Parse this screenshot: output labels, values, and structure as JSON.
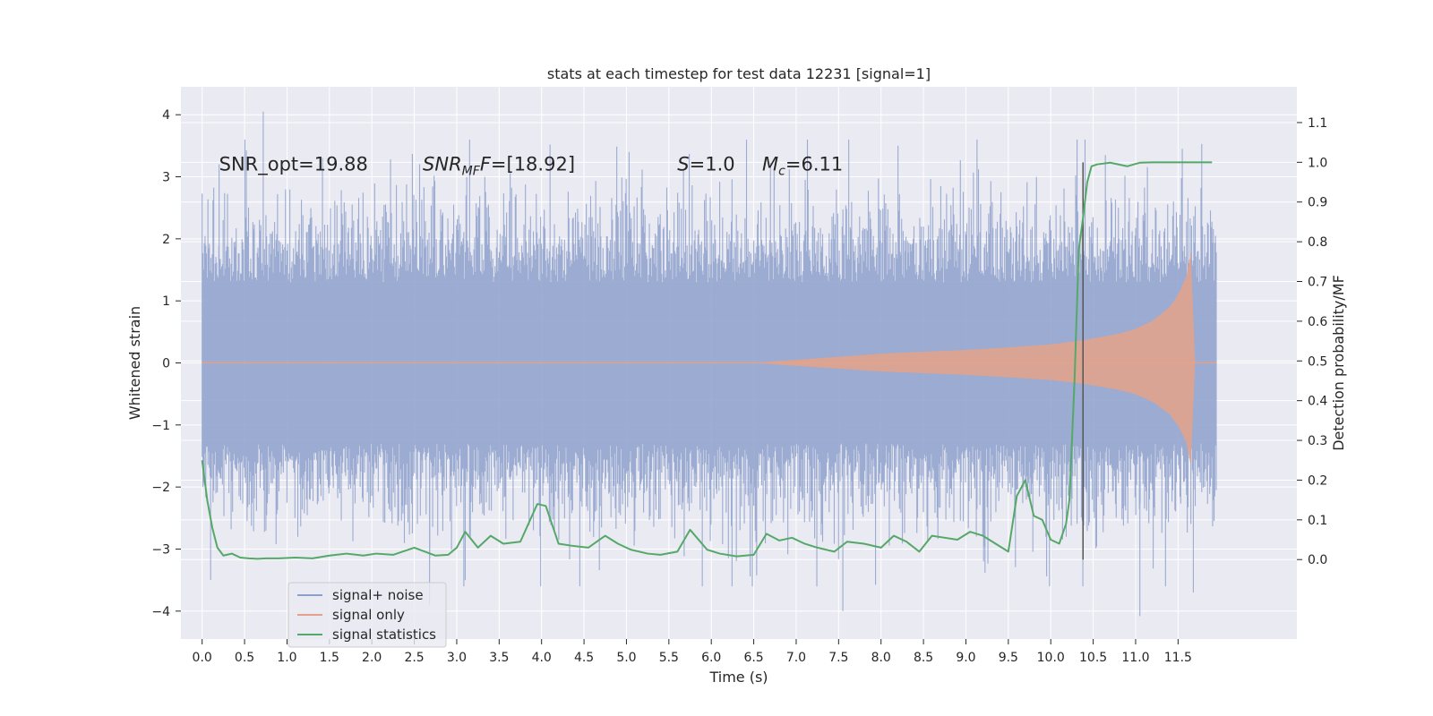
{
  "chart_data": {
    "type": "line",
    "title": "stats at each timestep for test data 12231 [signal=1]",
    "xlabel": "Time (s)",
    "ylabel": "Whitened strain",
    "y2label": "Detection probability/MF",
    "xlim": [
      -0.25,
      12.9
    ],
    "ylim": [
      -4.45,
      4.45
    ],
    "y2lim": [
      -0.2,
      1.19
    ],
    "x_ticks": [
      0.0,
      0.5,
      1.0,
      1.5,
      2.0,
      2.5,
      3.0,
      3.5,
      4.0,
      4.5,
      5.0,
      5.5,
      6.0,
      6.5,
      7.0,
      7.5,
      8.0,
      8.5,
      9.0,
      9.5,
      10.0,
      10.5,
      11.0,
      11.5
    ],
    "x_tick_labels": [
      "0.0",
      "0.5",
      "1.0",
      "1.5",
      "2.0",
      "2.5",
      "3.0",
      "3.5",
      "4.0",
      "4.5",
      "5.0",
      "5.5",
      "6.0",
      "6.5",
      "7.0",
      "7.5",
      "8.0",
      "8.5",
      "9.0",
      "9.5",
      "10.0",
      "10.5",
      "11.0",
      "11.5"
    ],
    "y_ticks": [
      -4,
      -3,
      -2,
      -1,
      0,
      1,
      2,
      3,
      4
    ],
    "y_tick_labels": [
      "−4",
      "−3",
      "−2",
      "−1",
      "0",
      "1",
      "2",
      "3",
      "4"
    ],
    "y2_ticks": [
      0.0,
      0.1,
      0.2,
      0.3,
      0.4,
      0.5,
      0.6,
      0.7,
      0.8,
      0.9,
      1.0,
      1.1
    ],
    "y2_tick_labels": [
      "0.0",
      "0.1",
      "0.2",
      "0.3",
      "0.4",
      "0.5",
      "0.6",
      "0.7",
      "0.8",
      "0.9",
      "1.0",
      "1.1"
    ],
    "grid": true,
    "legend_position": "lower-left",
    "annotations": [
      {
        "text": "SNR_opt=19.88",
        "x": 0.2,
        "y": 3.2
      },
      {
        "text": "SNR_MF=[18.92]",
        "x": 2.6,
        "y": 3.2
      },
      {
        "text": "S=1.0",
        "x": 5.6,
        "y": 3.2
      },
      {
        "text": "M_c=6.11",
        "x": 6.6,
        "y": 3.2
      }
    ],
    "detection_marker_x": 10.38,
    "series": [
      {
        "name": "signal+ noise",
        "color": "#8da0cb",
        "kind": "noise-band",
        "t_range": [
          0.0,
          11.95
        ],
        "typical_amplitude": 1.3,
        "peak_samples": [
          {
            "x": 0.1,
            "y": -3.5
          },
          {
            "x": 0.2,
            "y": 3.2
          },
          {
            "x": 0.72,
            "y": 4.05
          },
          {
            "x": 2.22,
            "y": 3.28
          },
          {
            "x": 2.68,
            "y": -3.9
          },
          {
            "x": 3.1,
            "y": -3.5
          },
          {
            "x": 4.1,
            "y": 3.52
          },
          {
            "x": 7.55,
            "y": -4.0
          },
          {
            "x": 8.2,
            "y": 3.5
          },
          {
            "x": 11.05,
            "y": -4.08
          },
          {
            "x": 11.68,
            "y": -3.7
          },
          {
            "x": 11.55,
            "y": 3.45
          }
        ]
      },
      {
        "name": "signal only",
        "color": "#e5a28a",
        "kind": "chirp",
        "t": [
          0.0,
          6.5,
          7.0,
          7.5,
          8.0,
          8.5,
          9.0,
          9.5,
          10.0,
          10.4,
          10.8,
          11.0,
          11.2,
          11.4,
          11.5,
          11.6,
          11.65,
          11.7
        ],
        "envelope": [
          0.0,
          0.0,
          0.05,
          0.1,
          0.15,
          0.18,
          0.21,
          0.25,
          0.3,
          0.37,
          0.47,
          0.55,
          0.68,
          0.9,
          1.1,
          1.4,
          1.8,
          0.0
        ]
      },
      {
        "name": "signal statistics",
        "color": "#55a868",
        "kind": "line",
        "x": [
          0.0,
          0.06,
          0.12,
          0.18,
          0.25,
          0.35,
          0.45,
          0.55,
          0.65,
          0.75,
          0.9,
          1.1,
          1.3,
          1.5,
          1.7,
          1.9,
          2.05,
          2.25,
          2.5,
          2.75,
          2.9,
          3.0,
          3.1,
          3.25,
          3.4,
          3.55,
          3.75,
          3.95,
          4.05,
          4.2,
          4.35,
          4.55,
          4.75,
          4.9,
          5.05,
          5.25,
          5.4,
          5.6,
          5.75,
          5.95,
          6.1,
          6.3,
          6.5,
          6.65,
          6.8,
          6.95,
          7.1,
          7.25,
          7.45,
          7.6,
          7.8,
          8.0,
          8.15,
          8.3,
          8.45,
          8.6,
          8.75,
          8.9,
          9.05,
          9.2,
          9.35,
          9.5,
          9.6,
          9.7,
          9.8,
          9.9,
          10.0,
          10.1,
          10.18,
          10.22,
          10.28,
          10.33,
          10.38,
          10.43,
          10.48,
          10.55,
          10.7,
          10.9,
          11.05,
          11.2,
          11.4,
          11.6,
          11.8,
          11.9
        ],
        "y": [
          0.25,
          0.15,
          0.08,
          0.03,
          0.01,
          0.015,
          0.005,
          0.003,
          0.002,
          0.003,
          0.003,
          0.005,
          0.003,
          0.01,
          0.015,
          0.01,
          0.015,
          0.012,
          0.03,
          0.01,
          0.012,
          0.03,
          0.07,
          0.03,
          0.06,
          0.04,
          0.045,
          0.14,
          0.135,
          0.04,
          0.035,
          0.03,
          0.06,
          0.04,
          0.025,
          0.015,
          0.012,
          0.02,
          0.075,
          0.025,
          0.015,
          0.008,
          0.012,
          0.065,
          0.048,
          0.055,
          0.04,
          0.03,
          0.02,
          0.045,
          0.04,
          0.03,
          0.06,
          0.045,
          0.02,
          0.06,
          0.055,
          0.05,
          0.07,
          0.06,
          0.04,
          0.02,
          0.16,
          0.2,
          0.11,
          0.1,
          0.05,
          0.04,
          0.09,
          0.15,
          0.45,
          0.78,
          0.86,
          0.95,
          0.99,
          0.995,
          0.999,
          0.99,
          0.999,
          1.0,
          1.0,
          1.0,
          1.0,
          1.0
        ]
      }
    ]
  }
}
